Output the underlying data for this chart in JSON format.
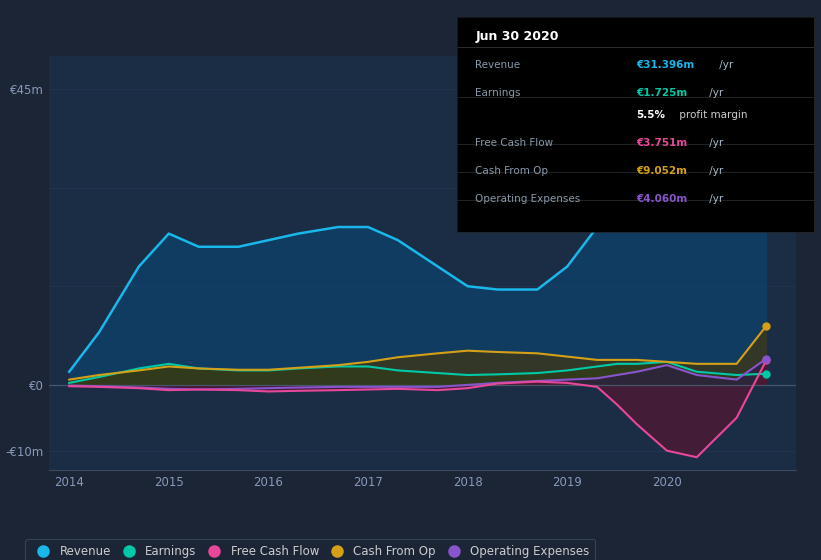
{
  "bg_color": "#1c2535",
  "plot_bg_color": "#1a2d45",
  "grid_color": "#243350",
  "zero_line_color": "#4a5a70",
  "years": [
    2014.0,
    2014.3,
    2014.7,
    2015.0,
    2015.3,
    2015.7,
    2016.0,
    2016.3,
    2016.7,
    2017.0,
    2017.3,
    2017.7,
    2018.0,
    2018.3,
    2018.7,
    2019.0,
    2019.3,
    2019.5,
    2019.7,
    2020.0,
    2020.3,
    2020.7,
    2021.0
  ],
  "revenue": [
    2,
    8,
    18,
    23,
    21,
    21,
    22,
    23,
    24,
    24,
    22,
    18,
    15,
    14.5,
    14.5,
    18,
    24,
    29,
    30,
    43,
    37,
    30,
    31
  ],
  "earnings": [
    0.3,
    1.2,
    2.5,
    3.2,
    2.5,
    2.2,
    2.2,
    2.5,
    2.8,
    2.8,
    2.2,
    1.8,
    1.5,
    1.6,
    1.8,
    2.2,
    2.8,
    3.2,
    3.2,
    3.5,
    2.0,
    1.5,
    1.7
  ],
  "free_cash_flow": [
    -0.2,
    -0.3,
    -0.5,
    -0.8,
    -0.7,
    -0.8,
    -1.0,
    -0.9,
    -0.8,
    -0.7,
    -0.6,
    -0.8,
    -0.5,
    0.2,
    0.5,
    0.3,
    -0.3,
    -3,
    -6,
    -10,
    -11,
    -5,
    3.8
  ],
  "cash_from_op": [
    0.8,
    1.5,
    2.2,
    2.8,
    2.5,
    2.3,
    2.3,
    2.6,
    3.0,
    3.5,
    4.2,
    4.8,
    5.2,
    5.0,
    4.8,
    4.3,
    3.8,
    3.8,
    3.8,
    3.5,
    3.2,
    3.2,
    9.0
  ],
  "operating_expenses": [
    -0.1,
    -0.2,
    -0.4,
    -0.6,
    -0.7,
    -0.6,
    -0.5,
    -0.4,
    -0.3,
    -0.3,
    -0.3,
    -0.3,
    0.0,
    0.3,
    0.6,
    0.8,
    1.0,
    1.5,
    2.0,
    3.0,
    1.5,
    0.8,
    4.0
  ],
  "revenue_color": "#1ab7ea",
  "earnings_color": "#00c9a7",
  "fcf_color": "#e8489a",
  "cashop_color": "#d4a017",
  "opex_color": "#8855cc",
  "revenue_fill_color": "#0a4a7a",
  "earnings_fill_color": "#0a4a3a",
  "fcf_fill_color": "#5a1530",
  "cashop_fill_color": "#4a3500",
  "opex_fill_color": "#2a1550",
  "ylim_min": -13,
  "ylim_max": 50,
  "yticks": [
    -10,
    0,
    45
  ],
  "ytick_labels": [
    "-€10m",
    "€0",
    "€45m"
  ],
  "xlim_min": 2013.8,
  "xlim_max": 2021.3,
  "xticks": [
    2014,
    2015,
    2016,
    2017,
    2018,
    2019,
    2020
  ],
  "grid_yticks": [
    -10,
    0,
    15,
    30,
    45
  ],
  "legend_labels": [
    "Revenue",
    "Earnings",
    "Free Cash Flow",
    "Cash From Op",
    "Operating Expenses"
  ],
  "info_box": {
    "title": "Jun 30 2020",
    "rows": [
      {
        "label": "Revenue",
        "value": "€31.396m",
        "suffix": " /yr",
        "color": "#1ab7ea"
      },
      {
        "label": "Earnings",
        "value": "€1.725m",
        "suffix": " /yr",
        "color": "#00c9a7"
      },
      {
        "label": "",
        "value": "5.5%",
        "suffix": " profit margin",
        "color": "#ffffff",
        "suffix_color": "#cccccc"
      },
      {
        "label": "Free Cash Flow",
        "value": "€3.751m",
        "suffix": " /yr",
        "color": "#e8489a"
      },
      {
        "label": "Cash From Op",
        "value": "€9.052m",
        "suffix": " /yr",
        "color": "#d4a017"
      },
      {
        "label": "Operating Expenses",
        "value": "€4.060m",
        "suffix": " /yr",
        "color": "#8855cc"
      }
    ]
  }
}
